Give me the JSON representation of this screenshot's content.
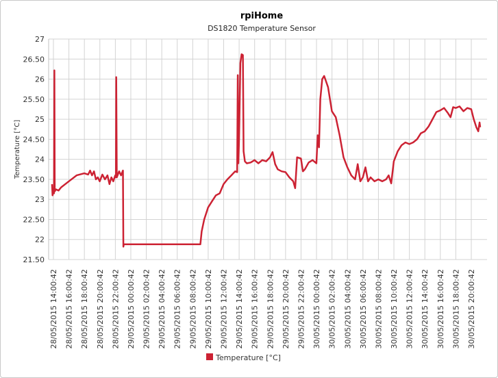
{
  "chart_data": {
    "type": "line",
    "title": "rpiHome",
    "subtitle": "DS1820 Temperature Sensor",
    "xlabel": "",
    "ylabel": "Temperature [°C]",
    "ylim": [
      21.5,
      27
    ],
    "yticks": [
      "21.50",
      "22",
      "22.50",
      "23",
      "23.50",
      "24",
      "24.50",
      "25",
      "25.50",
      "26",
      "26.50",
      "27"
    ],
    "xticks": [
      "28/05/2015 14:00:42",
      "28/05/2015 16:00:42",
      "28/05/2015 18:00:42",
      "28/05/2015 20:00:42",
      "28/05/2015 22:00:42",
      "29/05/2015 00:00:42",
      "29/05/2015 02:00:42",
      "29/05/2015 04:00:42",
      "29/05/2015 06:00:42",
      "29/05/2015 08:00:42",
      "29/05/2015 10:00:42",
      "29/05/2015 12:00:42",
      "29/05/2015 14:00:42",
      "29/05/2015 16:00:42",
      "29/05/2015 18:00:42",
      "29/05/2015 20:00:42",
      "29/05/2015 22:00:42",
      "30/05/2015 00:00:42",
      "30/05/2015 02:00:42",
      "30/05/2015 04:00:42",
      "30/05/2015 06:00:42",
      "30/05/2015 08:00:42",
      "30/05/2015 10:00:42",
      "30/05/2015 12:00:42",
      "30/05/2015 14:00:42",
      "30/05/2015 16:00:42",
      "30/05/2015 18:00:42",
      "30/05/2015 20:00:42"
    ],
    "grid": true,
    "legend": "bottom",
    "series": [
      {
        "name": "Temperature [°C]",
        "color": "#cc2233",
        "points": [
          [
            "28/05/2015 13:50",
            23.38
          ],
          [
            "28/05/2015 13:54",
            23.1
          ],
          [
            "28/05/2015 13:58",
            23.2
          ],
          [
            "28/05/2015 14:05",
            23.15
          ],
          [
            "28/05/2015 14:08",
            26.22
          ],
          [
            "28/05/2015 14:11",
            23.2
          ],
          [
            "28/05/2015 14:20",
            23.25
          ],
          [
            "28/05/2015 14:40",
            23.22
          ],
          [
            "28/05/2015 15:00",
            23.3
          ],
          [
            "28/05/2015 16:00",
            23.45
          ],
          [
            "28/05/2015 17:00",
            23.6
          ],
          [
            "28/05/2015 18:00",
            23.65
          ],
          [
            "28/05/2015 18:30",
            23.62
          ],
          [
            "28/05/2015 18:45",
            23.72
          ],
          [
            "28/05/2015 19:00",
            23.6
          ],
          [
            "28/05/2015 19:15",
            23.7
          ],
          [
            "28/05/2015 19:30",
            23.5
          ],
          [
            "28/05/2015 19:45",
            23.55
          ],
          [
            "28/05/2015 20:00",
            23.45
          ],
          [
            "28/05/2015 20:20",
            23.62
          ],
          [
            "28/05/2015 20:40",
            23.5
          ],
          [
            "28/05/2015 21:00",
            23.6
          ],
          [
            "28/05/2015 21:15",
            23.38
          ],
          [
            "28/05/2015 21:30",
            23.55
          ],
          [
            "28/05/2015 21:45",
            23.45
          ],
          [
            "28/05/2015 22:00",
            23.6
          ],
          [
            "28/05/2015 22:05",
            23.55
          ],
          [
            "28/05/2015 22:08",
            26.05
          ],
          [
            "28/05/2015 22:12",
            23.55
          ],
          [
            "28/05/2015 22:30",
            23.7
          ],
          [
            "28/05/2015 22:45",
            23.6
          ],
          [
            "28/05/2015 23:00",
            23.72
          ],
          [
            "28/05/2015 23:03",
            21.82
          ],
          [
            "28/05/2015 23:06",
            21.88
          ],
          [
            "29/05/2015 01:00",
            21.88
          ],
          [
            "29/05/2015 04:00",
            21.88
          ],
          [
            "29/05/2015 07:00",
            21.88
          ],
          [
            "29/05/2015 09:00",
            21.88
          ],
          [
            "29/05/2015 09:10",
            22.2
          ],
          [
            "29/05/2015 09:30",
            22.5
          ],
          [
            "29/05/2015 10:00",
            22.8
          ],
          [
            "29/05/2015 10:30",
            22.95
          ],
          [
            "29/05/2015 11:00",
            23.1
          ],
          [
            "29/05/2015 11:30",
            23.15
          ],
          [
            "29/05/2015 12:00",
            23.38
          ],
          [
            "29/05/2015 12:30",
            23.5
          ],
          [
            "29/05/2015 13:00",
            23.6
          ],
          [
            "29/05/2015 13:30",
            23.7
          ],
          [
            "29/05/2015 13:45",
            23.68
          ],
          [
            "29/05/2015 13:50",
            26.1
          ],
          [
            "29/05/2015 13:55",
            23.9
          ],
          [
            "29/05/2015 14:00",
            24.5
          ],
          [
            "29/05/2015 14:10",
            26.4
          ],
          [
            "29/05/2015 14:20",
            26.62
          ],
          [
            "29/05/2015 14:30",
            26.6
          ],
          [
            "29/05/2015 14:35",
            24.2
          ],
          [
            "29/05/2015 14:45",
            23.95
          ],
          [
            "29/05/2015 15:00",
            23.9
          ],
          [
            "29/05/2015 15:30",
            23.92
          ],
          [
            "29/05/2015 16:00",
            23.98
          ],
          [
            "29/05/2015 16:30",
            23.9
          ],
          [
            "29/05/2015 17:00",
            23.98
          ],
          [
            "29/05/2015 17:30",
            23.95
          ],
          [
            "29/05/2015 18:00",
            24.05
          ],
          [
            "29/05/2015 18:20",
            24.18
          ],
          [
            "29/05/2015 18:40",
            23.88
          ],
          [
            "29/05/2015 19:00",
            23.75
          ],
          [
            "29/05/2015 19:30",
            23.7
          ],
          [
            "29/05/2015 20:00",
            23.68
          ],
          [
            "29/05/2015 20:30",
            23.55
          ],
          [
            "29/05/2015 21:00",
            23.45
          ],
          [
            "29/05/2015 21:15",
            23.28
          ],
          [
            "29/05/2015 21:30",
            24.05
          ],
          [
            "29/05/2015 22:00",
            24.02
          ],
          [
            "29/05/2015 22:15",
            23.7
          ],
          [
            "29/05/2015 22:30",
            23.75
          ],
          [
            "29/05/2015 23:00",
            23.92
          ],
          [
            "29/05/2015 23:30",
            23.98
          ],
          [
            "30/05/2015 00:00",
            23.9
          ],
          [
            "30/05/2015 00:10",
            24.6
          ],
          [
            "30/05/2015 00:20",
            24.3
          ],
          [
            "30/05/2015 00:30",
            25.5
          ],
          [
            "30/05/2015 00:45",
            26.0
          ],
          [
            "30/05/2015 01:00",
            26.08
          ],
          [
            "30/05/2015 01:30",
            25.8
          ],
          [
            "30/05/2015 02:00",
            25.2
          ],
          [
            "30/05/2015 02:30",
            25.05
          ],
          [
            "30/05/2015 03:00",
            24.6
          ],
          [
            "30/05/2015 03:30",
            24.05
          ],
          [
            "30/05/2015 04:00",
            23.8
          ],
          [
            "30/05/2015 04:30",
            23.6
          ],
          [
            "30/05/2015 05:00",
            23.5
          ],
          [
            "30/05/2015 05:20",
            23.88
          ],
          [
            "30/05/2015 05:40",
            23.45
          ],
          [
            "30/05/2015 06:00",
            23.55
          ],
          [
            "30/05/2015 06:20",
            23.8
          ],
          [
            "30/05/2015 06:40",
            23.45
          ],
          [
            "30/05/2015 07:00",
            23.55
          ],
          [
            "30/05/2015 07:30",
            23.45
          ],
          [
            "30/05/2015 08:00",
            23.5
          ],
          [
            "30/05/2015 08:30",
            23.45
          ],
          [
            "30/05/2015 09:00",
            23.5
          ],
          [
            "30/05/2015 09:20",
            23.6
          ],
          [
            "30/05/2015 09:40",
            23.4
          ],
          [
            "30/05/2015 10:00",
            23.95
          ],
          [
            "30/05/2015 10:30",
            24.2
          ],
          [
            "30/05/2015 11:00",
            24.35
          ],
          [
            "30/05/2015 11:30",
            24.42
          ],
          [
            "30/05/2015 12:00",
            24.38
          ],
          [
            "30/05/2015 12:30",
            24.42
          ],
          [
            "30/05/2015 13:00",
            24.5
          ],
          [
            "30/05/2015 13:30",
            24.65
          ],
          [
            "30/05/2015 14:00",
            24.7
          ],
          [
            "30/05/2015 14:30",
            24.82
          ],
          [
            "30/05/2015 15:00",
            25.0
          ],
          [
            "30/05/2015 15:30",
            25.18
          ],
          [
            "30/05/2015 16:00",
            25.22
          ],
          [
            "30/05/2015 16:30",
            25.28
          ],
          [
            "30/05/2015 17:00",
            25.15
          ],
          [
            "30/05/2015 17:20",
            25.05
          ],
          [
            "30/05/2015 17:40",
            25.3
          ],
          [
            "30/05/2015 18:00",
            25.28
          ],
          [
            "30/05/2015 18:30",
            25.32
          ],
          [
            "30/05/2015 19:00",
            25.2
          ],
          [
            "30/05/2015 19:30",
            25.28
          ],
          [
            "30/05/2015 20:00",
            25.25
          ],
          [
            "30/05/2015 20:20",
            25.0
          ],
          [
            "30/05/2015 20:40",
            24.8
          ],
          [
            "30/05/2015 20:55",
            24.7
          ],
          [
            "30/05/2015 21:05",
            24.92
          ],
          [
            "30/05/2015 21:10",
            24.8
          ]
        ]
      }
    ]
  }
}
